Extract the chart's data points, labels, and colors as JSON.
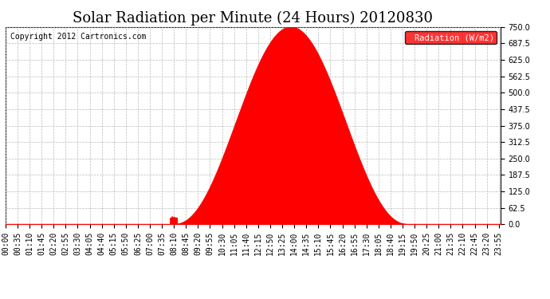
{
  "title": "Solar Radiation per Minute (24 Hours) 20120830",
  "copyright_text": "Copyright 2012 Cartronics.com",
  "legend_label": "Radiation (W/m2)",
  "ylim": [
    0.0,
    750.0
  ],
  "yticks": [
    0.0,
    62.5,
    125.0,
    187.5,
    250.0,
    312.5,
    375.0,
    437.5,
    500.0,
    562.5,
    625.0,
    687.5,
    750.0
  ],
  "fill_color": "#FF0000",
  "line_color": "#FF0000",
  "background_color": "#FFFFFF",
  "grid_color": "#BBBBBB",
  "peak_hour": 12.42,
  "peak_value": 750.0,
  "sunrise_hour": 8.17,
  "sunset_hour": 19.5,
  "total_hours": 24,
  "x_tick_interval_minutes": 35,
  "dashed_line_color": "#FF0000",
  "title_fontsize": 13,
  "copyright_fontsize": 7,
  "tick_fontsize": 7
}
